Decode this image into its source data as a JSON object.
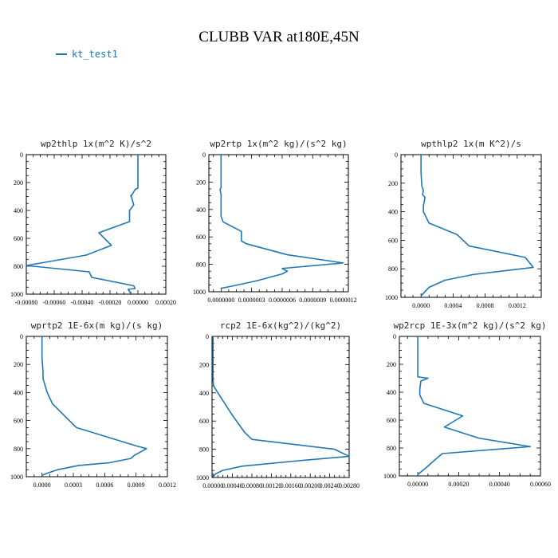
{
  "page": {
    "title": "CLUBB VAR at180E,45N",
    "legend": {
      "label": "kt_test1",
      "color": "#1f77b4"
    }
  },
  "chart_data": [
    {
      "type": "line",
      "title": "wp2thlp  1x(m^2 K)/s^2",
      "xlim": [
        -0.0008,
        0.0002
      ],
      "ylim": [
        0,
        1000
      ],
      "x_ticks": [
        "-0.00080",
        "-0.00060",
        "-0.00040",
        "-0.00020",
        "0.00000",
        "0.00020"
      ],
      "x_tick_values": [
        -0.0008,
        -0.0006,
        -0.0004,
        -0.0002,
        0,
        0.0002
      ],
      "y_ticks": [
        "0",
        "200",
        "400",
        "600",
        "800",
        "1000"
      ],
      "y_tick_values": [
        0,
        200,
        400,
        600,
        800,
        1000
      ],
      "series": [
        {
          "color": "#1f77b4",
          "x": [
            0,
            0,
            0,
            -2e-05,
            -5e-05,
            -5e-05,
            -3e-05,
            -6e-05,
            -6e-05,
            -0.00028,
            -0.00019,
            -0.00037,
            -0.0008,
            -0.00035,
            -0.00033,
            -3e-05,
            -2e-05,
            -7e-05,
            -5e-05
          ],
          "y": [
            0,
            150,
            240,
            250,
            300,
            290,
            360,
            400,
            480,
            560,
            650,
            720,
            795,
            840,
            880,
            940,
            960,
            965,
            995
          ]
        }
      ]
    },
    {
      "type": "line",
      "title": "wp2rtp  1x(m^2 kg)/(s^2 kg)",
      "xlim": [
        -1.2e-07,
        1.25e-06
      ],
      "ylim": [
        0,
        1000
      ],
      "x_ticks": [
        "0.0000000",
        "0.0000003",
        "0.0000006",
        "0.0000009",
        "0.0000012"
      ],
      "x_tick_values": [
        0,
        3e-07,
        6e-07,
        9e-07,
        1.2e-06
      ],
      "y_ticks": [
        "0",
        "200",
        "400",
        "600",
        "800",
        "1000"
      ],
      "y_tick_values": [
        0,
        200,
        400,
        600,
        800,
        1000
      ],
      "series": [
        {
          "color": "#1f77b4",
          "x": [
            0,
            0,
            0,
            -1e-08,
            0,
            0,
            0,
            0,
            2e-08,
            2e-07,
            2e-07,
            2.5e-07,
            6.5e-07,
            1.2e-06,
            6e-07,
            6.5e-07,
            6e-07,
            3.5e-07,
            1e-07,
            0
          ],
          "y": [
            0,
            150,
            240,
            255,
            290,
            330,
            400,
            450,
            490,
            560,
            630,
            650,
            730,
            790,
            830,
            850,
            870,
            920,
            960,
            975
          ]
        }
      ]
    },
    {
      "type": "line",
      "title": "wpthlp2  1x(m K^2)/s",
      "xlim": [
        -0.00025,
        0.0015
      ],
      "ylim": [
        0,
        1000
      ],
      "x_ticks": [
        "0.0000",
        "0.0004",
        "0.0008",
        "0.0012"
      ],
      "x_tick_values": [
        0,
        0.0004,
        0.0008,
        0.0012
      ],
      "y_ticks": [
        "0",
        "200",
        "400",
        "600",
        "800",
        "1000"
      ],
      "y_tick_values": [
        0,
        200,
        400,
        600,
        800,
        1000
      ],
      "series": [
        {
          "color": "#1f77b4",
          "x": [
            0,
            0,
            1e-05,
            3e-05,
            2e-05,
            5e-05,
            3e-05,
            3e-05,
            0.0001,
            0.00045,
            0.0006,
            0.0013,
            0.0014,
            0.00065,
            0.0003,
            0.0001,
            0
          ],
          "y": [
            0,
            120,
            220,
            250,
            280,
            300,
            360,
            400,
            480,
            560,
            640,
            720,
            790,
            840,
            880,
            930,
            990
          ]
        }
      ]
    },
    {
      "type": "line",
      "title": "wprtp2  1E-6x(m kg)/(s kg)",
      "xlim": [
        -0.00015,
        0.0012
      ],
      "ylim": [
        0,
        1000
      ],
      "x_ticks": [
        "0.0000",
        "0.0003",
        "0.0006",
        "0.0009",
        "0.0012"
      ],
      "x_tick_values": [
        0,
        0.0003,
        0.0006,
        0.0009,
        0.0012
      ],
      "y_ticks": [
        "0",
        "200",
        "400",
        "600",
        "800",
        "1000"
      ],
      "y_tick_values": [
        0,
        200,
        400,
        600,
        800,
        1000
      ],
      "series": [
        {
          "color": "#1f77b4",
          "x": [
            0,
            0,
            1e-05,
            1e-05,
            5e-05,
            0.0001,
            0.00033,
            0.0009,
            0.001,
            0.00088,
            0.00085,
            0.00065,
            0.00035,
            0.00015,
            5e-05,
            0
          ],
          "y": [
            0,
            150,
            250,
            300,
            400,
            480,
            650,
            780,
            800,
            850,
            870,
            900,
            920,
            950,
            975,
            990
          ]
        }
      ]
    },
    {
      "type": "line",
      "title": "rcp2  1E-6x(kg^2)/(kg^2)",
      "xlim": [
        -2e-05,
        0.0028
      ],
      "ylim": [
        0,
        1000
      ],
      "x_ticks": [
        "0.00000",
        "0.00040",
        "0.00080",
        "0.00120",
        "0.00160",
        "0.00200",
        "0.00240",
        "0.00280"
      ],
      "x_tick_values": [
        0,
        0.0004,
        0.0008,
        0.0012,
        0.0016,
        0.002,
        0.0024,
        0.0028
      ],
      "y_ticks": [
        "0",
        "200",
        "400",
        "600",
        "800",
        "1000"
      ],
      "y_tick_values": [
        0,
        200,
        400,
        600,
        800,
        1000
      ],
      "series": [
        {
          "color": "#1f77b4",
          "x": [
            0,
            0,
            0,
            1e-05,
            0.0001,
            0.0004,
            0.00065,
            0.0008,
            0.0025,
            0.0028,
            0.0018,
            0.0006,
            0.0002,
            5e-05,
            0
          ],
          "y": [
            0,
            200,
            300,
            350,
            400,
            560,
            680,
            730,
            800,
            850,
            880,
            920,
            950,
            975,
            995
          ]
        }
      ]
    },
    {
      "type": "line",
      "title": "wp2rcp  1E-3x(m^2 kg)/(s^2 kg)",
      "xlim": [
        -9e-05,
        0.0006
      ],
      "ylim": [
        0,
        1000
      ],
      "x_ticks": [
        "0.00000",
        "0.00020",
        "0.00040",
        "0.00060"
      ],
      "x_tick_values": [
        0,
        0.0002,
        0.0004,
        0.0006
      ],
      "y_ticks": [
        "0",
        "200",
        "400",
        "600",
        "800",
        "1000"
      ],
      "y_tick_values": [
        0,
        200,
        400,
        600,
        800,
        1000
      ],
      "series": [
        {
          "color": "#1f77b4",
          "x": [
            0,
            0,
            0,
            5e-05,
            1.5e-05,
            1e-05,
            1e-05,
            3e-05,
            0.00022,
            0.00013,
            0.0003,
            0.00055,
            0.00012,
            8e-05,
            5e-05,
            0
          ],
          "y": [
            0,
            180,
            290,
            300,
            320,
            380,
            420,
            480,
            570,
            650,
            730,
            790,
            840,
            890,
            930,
            990
          ]
        }
      ]
    }
  ]
}
